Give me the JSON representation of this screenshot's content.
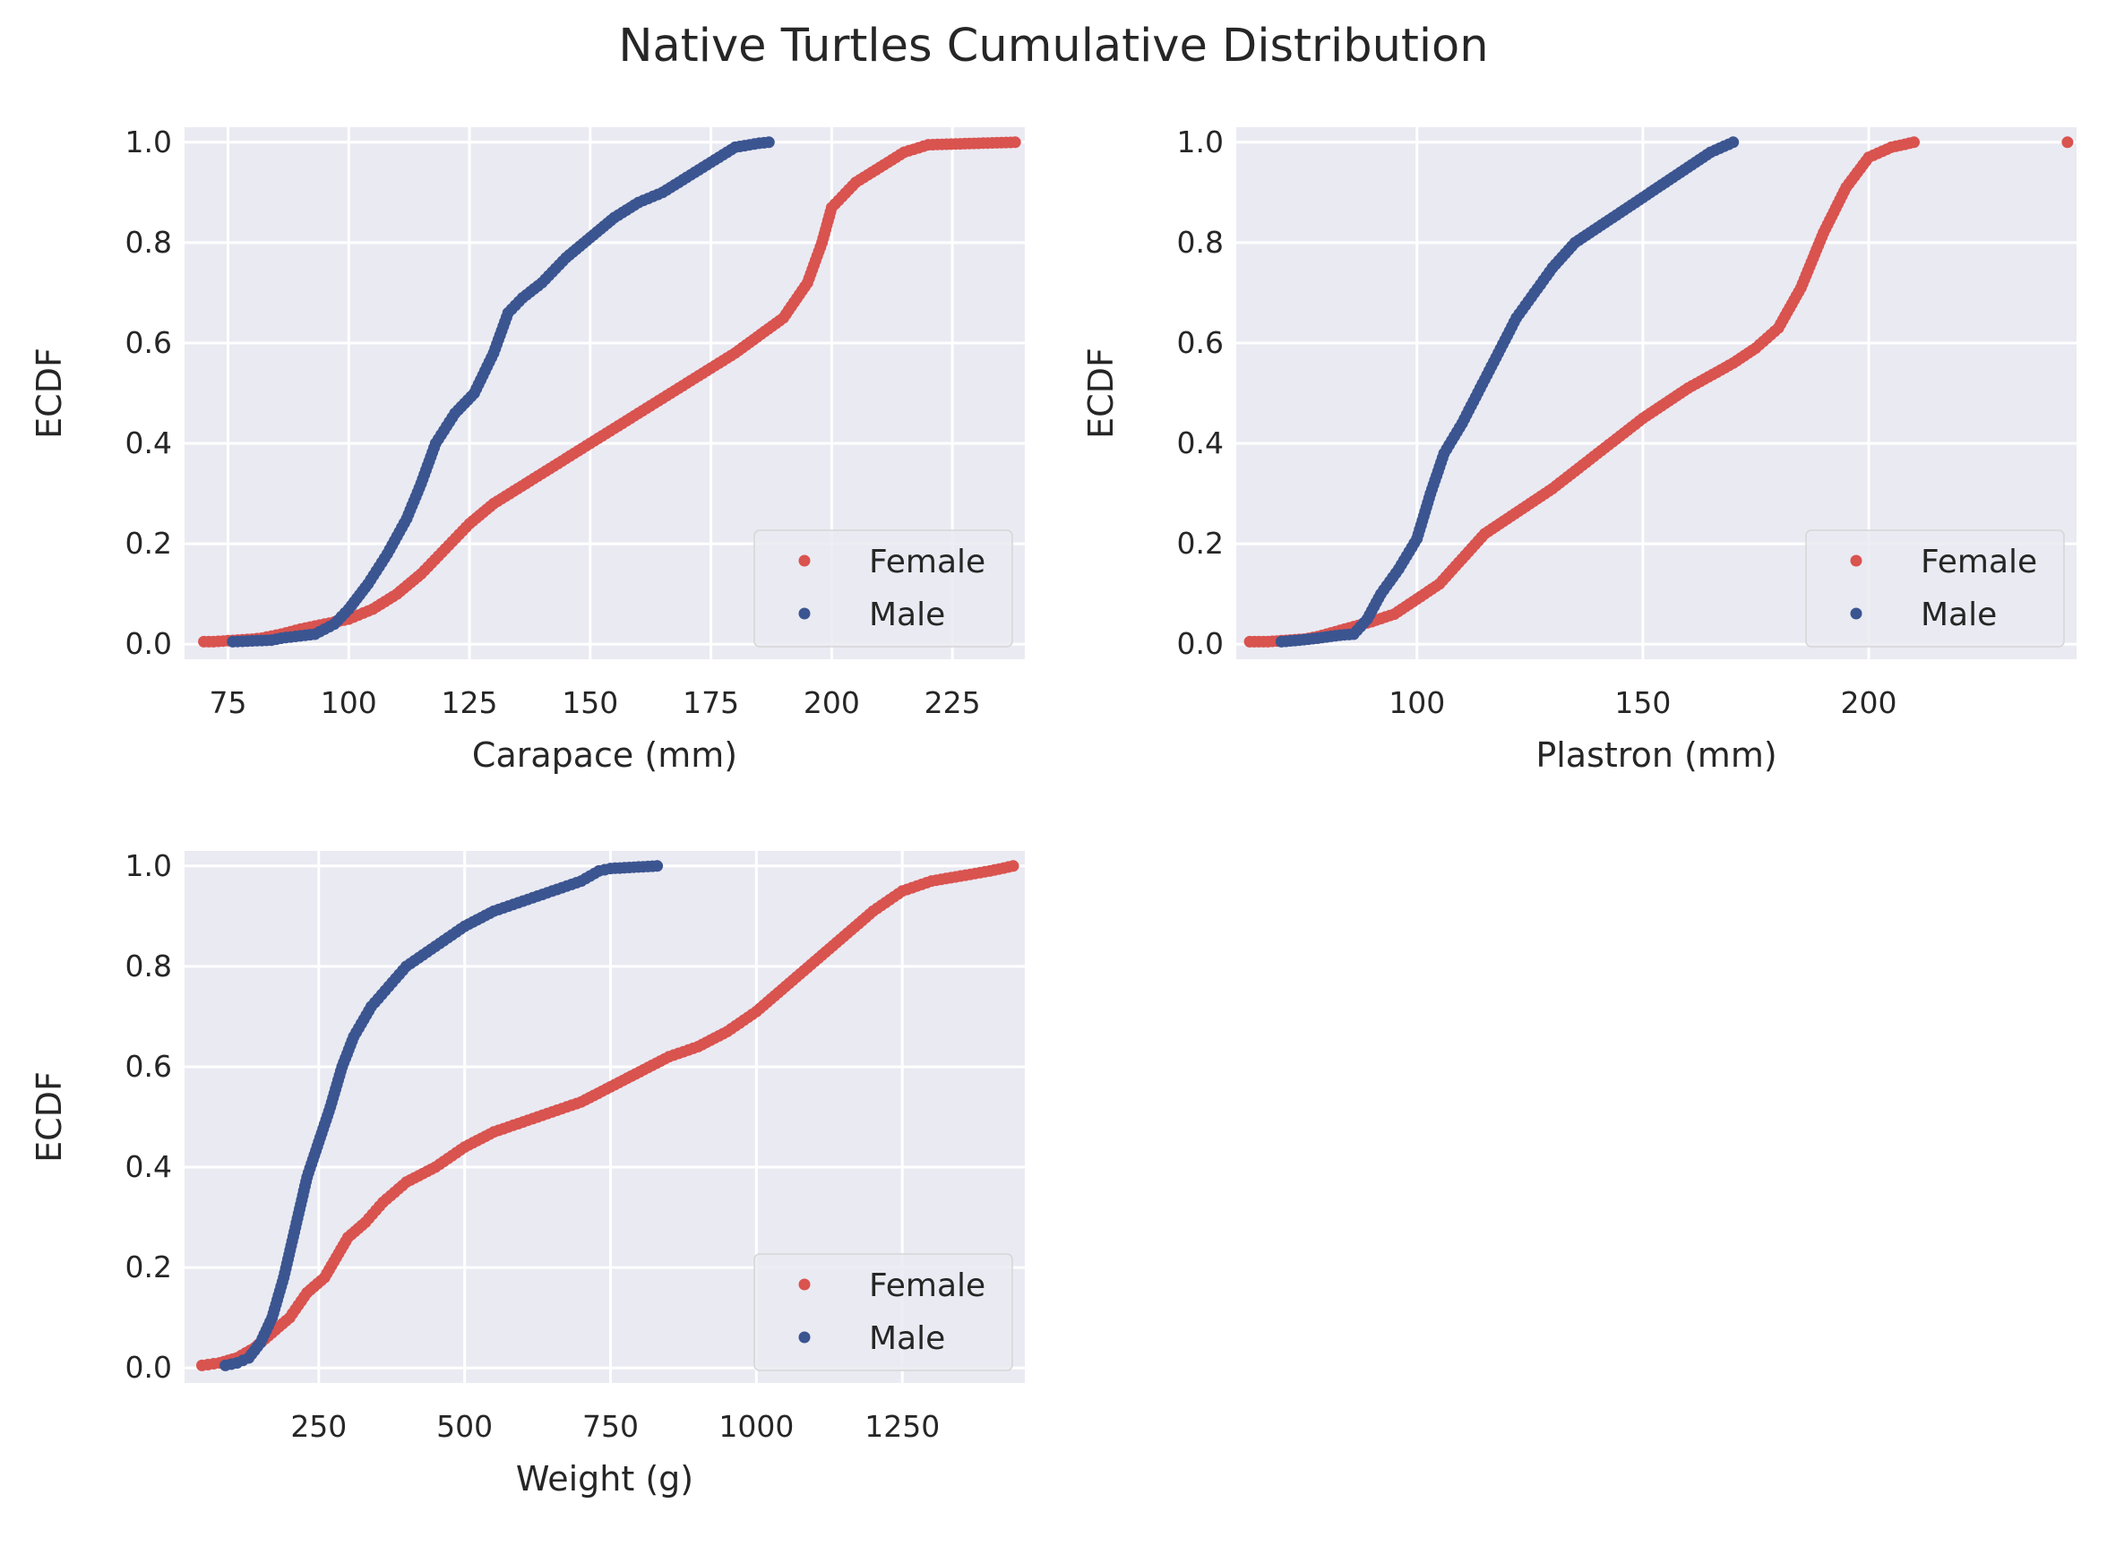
{
  "figure": {
    "title": "Native Turtles Cumulative Distribution"
  },
  "legend": {
    "female_label": "Female",
    "male_label": "Male"
  },
  "colors": {
    "female": "#d9534f",
    "male": "#3b5591",
    "panel_bg": "#eaeaf2"
  },
  "chart_data": [
    {
      "type": "scatter",
      "xlabel": "Carapace (mm)",
      "ylabel": "ECDF",
      "xlim": [
        66,
        240
      ],
      "ylim": [
        -0.03,
        1.03
      ],
      "xticks": [
        75,
        100,
        125,
        150,
        175,
        200,
        225
      ],
      "yticks": [
        0.0,
        0.2,
        0.4,
        0.6,
        0.8,
        1.0
      ],
      "legend_position": "lower-right",
      "series": [
        {
          "name": "Female",
          "color": "#d9534f",
          "x": [
            70,
            72,
            80,
            82,
            86,
            90,
            95,
            100,
            105,
            110,
            115,
            120,
            125,
            130,
            140,
            145,
            150,
            160,
            170,
            180,
            190,
            195,
            198,
            200,
            205,
            210,
            215,
            220,
            238
          ],
          "y": [
            0.005,
            0.005,
            0.01,
            0.012,
            0.02,
            0.03,
            0.04,
            0.05,
            0.07,
            0.1,
            0.14,
            0.19,
            0.24,
            0.28,
            0.34,
            0.37,
            0.4,
            0.46,
            0.52,
            0.58,
            0.65,
            0.72,
            0.8,
            0.87,
            0.92,
            0.95,
            0.98,
            0.995,
            1.0
          ]
        },
        {
          "name": "Male",
          "color": "#3b5591",
          "x": [
            76,
            84,
            86,
            93,
            97,
            100,
            104,
            108,
            112,
            115,
            118,
            122,
            126,
            130,
            133,
            136,
            140,
            145,
            150,
            155,
            160,
            165,
            170,
            175,
            180,
            185,
            187
          ],
          "y": [
            0.005,
            0.008,
            0.012,
            0.02,
            0.04,
            0.07,
            0.12,
            0.18,
            0.25,
            0.32,
            0.4,
            0.46,
            0.5,
            0.58,
            0.66,
            0.69,
            0.72,
            0.77,
            0.81,
            0.85,
            0.88,
            0.9,
            0.93,
            0.96,
            0.99,
            0.998,
            1.0
          ]
        }
      ]
    },
    {
      "type": "scatter",
      "xlabel": "Plastron (mm)",
      "ylabel": "ECDF",
      "xlim": [
        60,
        246
      ],
      "ylim": [
        -0.03,
        1.03
      ],
      "xticks": [
        100,
        150,
        200
      ],
      "yticks": [
        0.0,
        0.2,
        0.4,
        0.6,
        0.8,
        1.0
      ],
      "legend_position": "lower-right",
      "series": [
        {
          "name": "Female",
          "color": "#d9534f",
          "x": [
            63,
            67,
            75,
            78,
            82,
            86,
            90,
            95,
            100,
            105,
            110,
            115,
            120,
            130,
            140,
            150,
            160,
            170,
            175,
            180,
            185,
            190,
            195,
            200,
            205,
            210,
            244
          ],
          "y": [
            0.005,
            0.005,
            0.01,
            0.015,
            0.025,
            0.035,
            0.045,
            0.06,
            0.09,
            0.12,
            0.17,
            0.22,
            0.25,
            0.31,
            0.38,
            0.45,
            0.51,
            0.56,
            0.59,
            0.63,
            0.71,
            0.82,
            0.91,
            0.97,
            0.99,
            1.0,
            1.0
          ]
        },
        {
          "name": "Male",
          "color": "#3b5591",
          "x": [
            70,
            74,
            78,
            83,
            86,
            89,
            92,
            96,
            100,
            103,
            106,
            110,
            114,
            118,
            122,
            126,
            130,
            135,
            140,
            145,
            150,
            155,
            160,
            165,
            170
          ],
          "y": [
            0.005,
            0.008,
            0.012,
            0.018,
            0.02,
            0.05,
            0.1,
            0.15,
            0.21,
            0.3,
            0.38,
            0.44,
            0.51,
            0.58,
            0.65,
            0.7,
            0.75,
            0.8,
            0.83,
            0.86,
            0.89,
            0.92,
            0.95,
            0.98,
            1.0
          ]
        }
      ]
    },
    {
      "type": "scatter",
      "xlabel": "Weight (g)",
      "ylabel": "ECDF",
      "xlim": [
        20,
        1460
      ],
      "ylim": [
        -0.03,
        1.03
      ],
      "xticks": [
        250,
        500,
        750,
        1000,
        1250
      ],
      "yticks": [
        0.0,
        0.2,
        0.4,
        0.6,
        0.8,
        1.0
      ],
      "legend_position": "lower-right",
      "series": [
        {
          "name": "Female",
          "color": "#d9534f",
          "x": [
            50,
            80,
            110,
            140,
            170,
            200,
            230,
            260,
            280,
            300,
            330,
            360,
            400,
            450,
            500,
            550,
            600,
            650,
            700,
            750,
            800,
            850,
            900,
            950,
            1000,
            1050,
            1100,
            1150,
            1200,
            1250,
            1300,
            1350,
            1400,
            1440
          ],
          "y": [
            0.005,
            0.01,
            0.02,
            0.04,
            0.07,
            0.1,
            0.15,
            0.18,
            0.22,
            0.26,
            0.29,
            0.33,
            0.37,
            0.4,
            0.44,
            0.47,
            0.49,
            0.51,
            0.53,
            0.56,
            0.59,
            0.62,
            0.64,
            0.67,
            0.71,
            0.76,
            0.81,
            0.86,
            0.91,
            0.95,
            0.97,
            0.98,
            0.99,
            1.0
          ]
        },
        {
          "name": "Male",
          "color": "#3b5591",
          "x": [
            90,
            110,
            130,
            150,
            170,
            190,
            210,
            230,
            250,
            270,
            290,
            310,
            340,
            370,
            400,
            450,
            500,
            550,
            600,
            650,
            700,
            730,
            750,
            830
          ],
          "y": [
            0.005,
            0.01,
            0.02,
            0.05,
            0.1,
            0.18,
            0.28,
            0.38,
            0.45,
            0.52,
            0.6,
            0.66,
            0.72,
            0.76,
            0.8,
            0.84,
            0.88,
            0.91,
            0.93,
            0.95,
            0.97,
            0.99,
            0.995,
            1.0
          ]
        }
      ]
    }
  ]
}
